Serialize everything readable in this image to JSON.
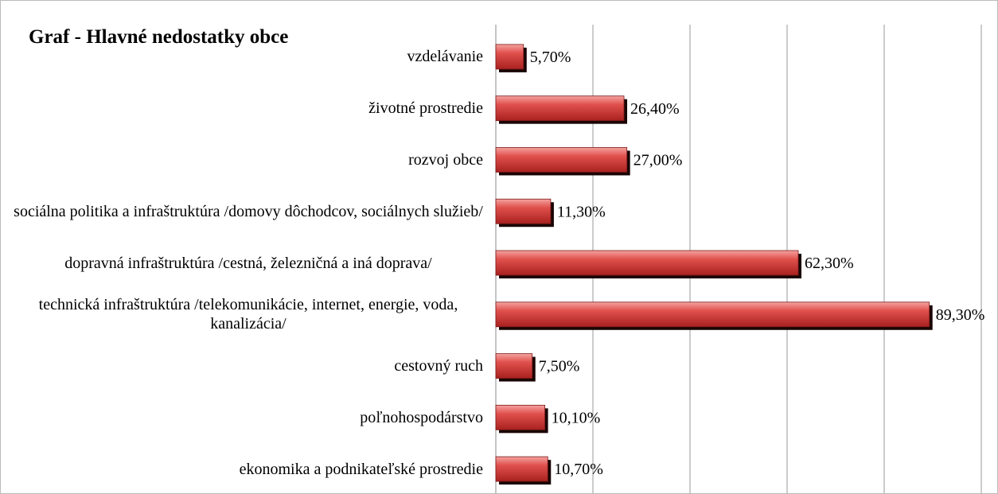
{
  "chart_data": {
    "type": "bar",
    "title": "Graf - Hlavné nedostatky obce",
    "categories": [
      "vzdelávanie",
      "životné prostredie",
      "rozvoj obce",
      "sociálna politika a infraštruktúra /domovy dôchodcov, sociálnych služieb/",
      "dopravná infraštruktúra /cestná, železničná a iná doprava/",
      "technická infraštruktúra /telekomunikácie, internet, energie, voda, kanalizácia/",
      "cestovný ruch",
      "poľnohospodárstvo",
      "ekonomika a podnikateľské prostredie"
    ],
    "values": [
      5.7,
      26.4,
      27.0,
      11.3,
      62.3,
      89.3,
      7.5,
      10.1,
      10.7
    ],
    "value_labels": [
      "5,70%",
      "26,40%",
      "27,00%",
      "11,30%",
      "62,30%",
      "89,30%",
      "7,50%",
      "10,10%",
      "10,70%"
    ],
    "color": "#d9413f",
    "xlim": [
      0,
      100
    ],
    "xticks": [
      0,
      20,
      40,
      60,
      80,
      100
    ],
    "grid": true
  }
}
